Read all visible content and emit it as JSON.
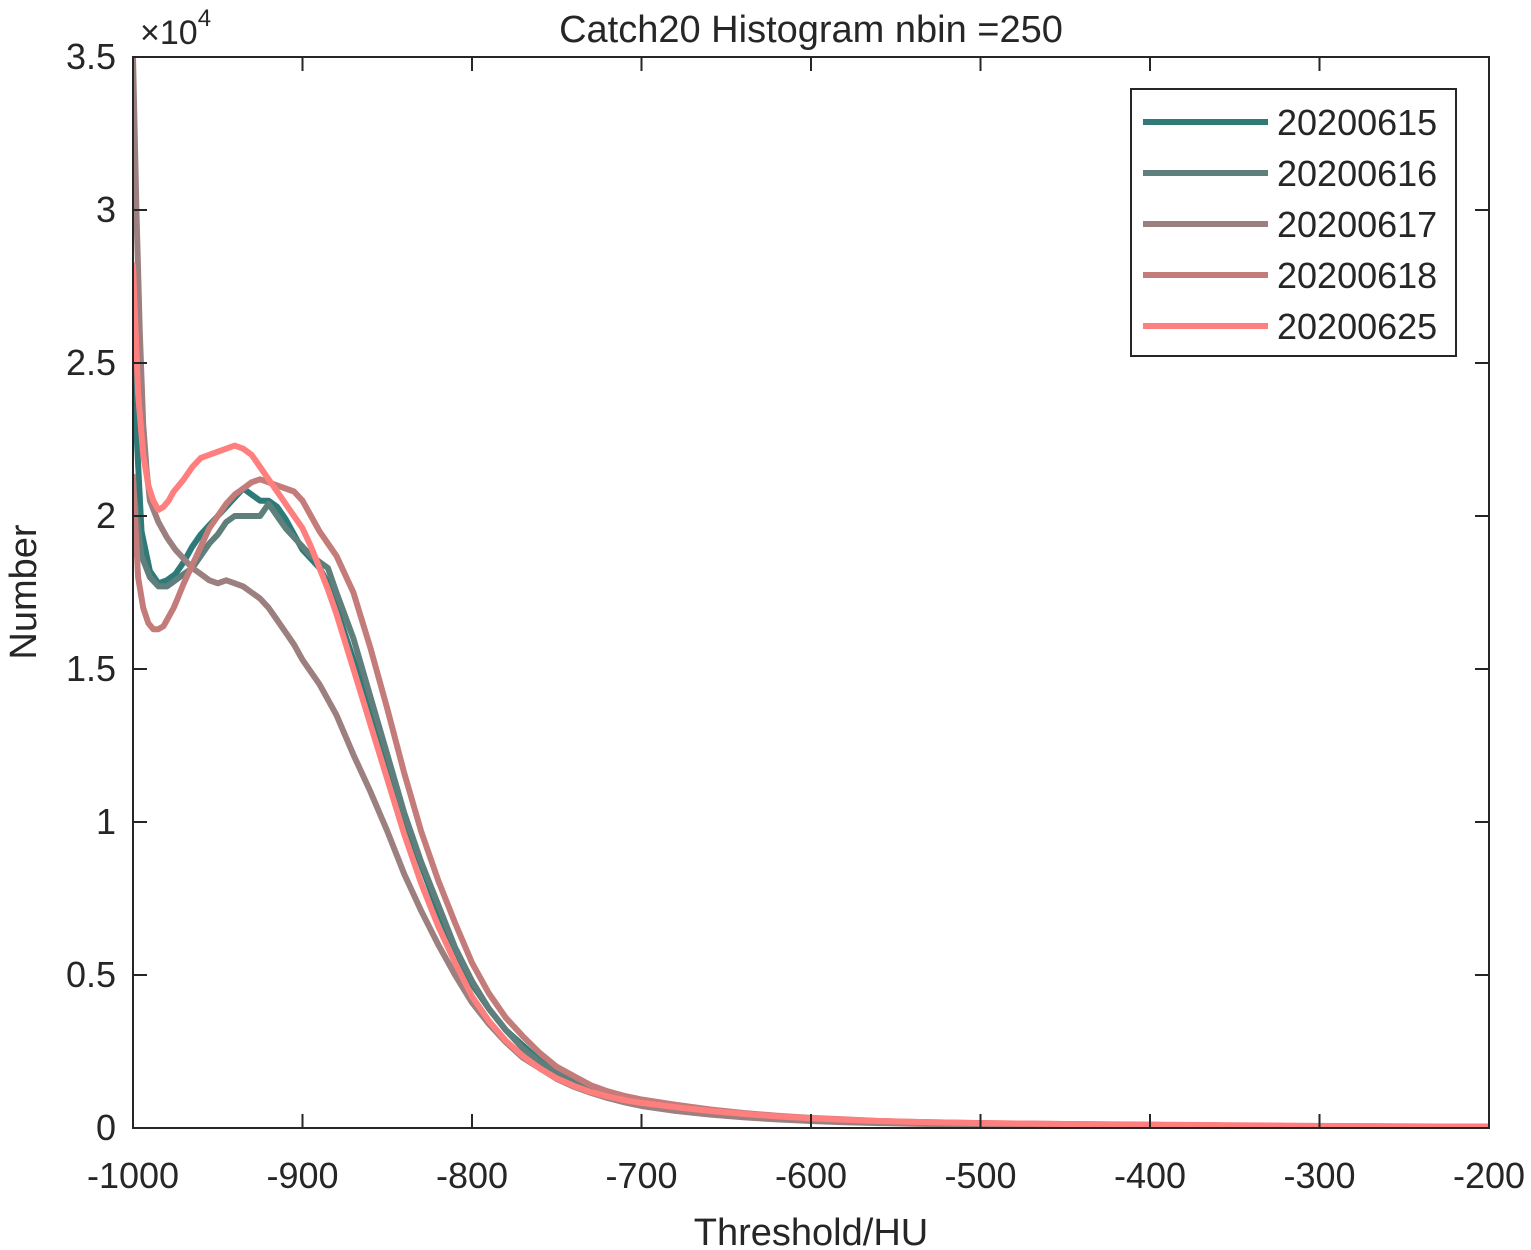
{
  "chart_data": {
    "type": "line",
    "title": "Catch20  Histogram nbin =250",
    "xlabel": "Threshold/HU",
    "ylabel": "Number",
    "y_exponent_label": "×10",
    "y_exponent_power": "4",
    "xlim": [
      -1000,
      -200
    ],
    "ylim": [
      0,
      35000
    ],
    "xticks": [
      -1000,
      -900,
      -800,
      -700,
      -600,
      -500,
      -400,
      -300,
      -200
    ],
    "xtick_labels": [
      "-1000",
      "-900",
      "-800",
      "-700",
      "-600",
      "-500",
      "-400",
      "-300",
      "-200"
    ],
    "yticks": [
      0,
      5000,
      10000,
      15000,
      20000,
      25000,
      30000,
      35000
    ],
    "ytick_labels": [
      "0",
      "0.5",
      "1",
      "1.5",
      "2",
      "2.5",
      "3",
      "3.5"
    ],
    "grid": false,
    "legend_position": "top-right",
    "series": [
      {
        "name": "20200615",
        "color": "#2e7a78",
        "x": [
          -1000,
          -995,
          -990,
          -985,
          -980,
          -975,
          -970,
          -965,
          -960,
          -955,
          -950,
          -945,
          -940,
          -935,
          -930,
          -925,
          -920,
          -915,
          -910,
          -905,
          -900,
          -895,
          -890,
          -885,
          -880,
          -870,
          -860,
          -850,
          -840,
          -830,
          -820,
          -810,
          -800,
          -790,
          -780,
          -770,
          -760,
          -750,
          -740,
          -730,
          -720,
          -710,
          -700,
          -680,
          -660,
          -640,
          -620,
          -600,
          -580,
          -560,
          -540,
          -520,
          -500,
          -450,
          -400,
          -350,
          -300,
          -250,
          -200
        ],
        "y": [
          25000,
          19500,
          18200,
          17800,
          17900,
          18100,
          18500,
          19000,
          19400,
          19700,
          20000,
          20300,
          20600,
          20900,
          20700,
          20500,
          20500,
          20300,
          19900,
          19400,
          18900,
          18600,
          18300,
          17800,
          17000,
          15300,
          13700,
          11800,
          10000,
          8600,
          7100,
          5800,
          4700,
          3900,
          3200,
          2700,
          2200,
          1850,
          1550,
          1300,
          1100,
          950,
          850,
          700,
          560,
          450,
          370,
          300,
          260,
          220,
          190,
          170,
          150,
          120,
          100,
          80,
          60,
          50,
          40
        ]
      },
      {
        "name": "20200616",
        "color": "#5e7f7b",
        "x": [
          -1000,
          -995,
          -990,
          -985,
          -980,
          -975,
          -970,
          -965,
          -960,
          -955,
          -950,
          -945,
          -940,
          -935,
          -930,
          -925,
          -920,
          -915,
          -910,
          -905,
          -900,
          -895,
          -890,
          -885,
          -880,
          -870,
          -860,
          -850,
          -840,
          -830,
          -820,
          -810,
          -800,
          -790,
          -780,
          -770,
          -760,
          -750,
          -740,
          -730,
          -720,
          -710,
          -700,
          -680,
          -660,
          -640,
          -620,
          -600,
          -580,
          -560,
          -540,
          -520,
          -500,
          -450,
          -400,
          -350,
          -300,
          -250,
          -200
        ],
        "y": [
          21000,
          18700,
          18000,
          17700,
          17700,
          17900,
          18100,
          18300,
          18700,
          19100,
          19400,
          19800,
          20000,
          20000,
          20000,
          20000,
          20400,
          20000,
          19600,
          19300,
          19000,
          18700,
          18500,
          18300,
          17500,
          16000,
          14100,
          12200,
          10300,
          8700,
          7300,
          5900,
          4800,
          3900,
          3200,
          2600,
          2150,
          1800,
          1500,
          1270,
          1080,
          930,
          830,
          680,
          550,
          450,
          370,
          300,
          260,
          220,
          190,
          170,
          150,
          120,
          100,
          80,
          60,
          50,
          40
        ]
      },
      {
        "name": "20200617",
        "color": "#9c7f7f",
        "x": [
          -1000,
          -998,
          -996,
          -994,
          -992,
          -990,
          -985,
          -980,
          -975,
          -970,
          -965,
          -960,
          -955,
          -950,
          -945,
          -940,
          -935,
          -930,
          -925,
          -920,
          -915,
          -910,
          -905,
          -900,
          -895,
          -890,
          -880,
          -870,
          -860,
          -850,
          -840,
          -830,
          -820,
          -810,
          -800,
          -790,
          -780,
          -770,
          -760,
          -750,
          -740,
          -730,
          -720,
          -710,
          -700,
          -680,
          -660,
          -640,
          -620,
          -600,
          -580,
          -560,
          -540,
          -520,
          -500,
          -450,
          -400,
          -350,
          -300,
          -250,
          -200
        ],
        "y": [
          35000,
          30000,
          26000,
          23000,
          21500,
          20500,
          19800,
          19300,
          18900,
          18600,
          18300,
          18100,
          17900,
          17800,
          17900,
          17800,
          17700,
          17500,
          17300,
          17000,
          16600,
          16200,
          15800,
          15300,
          14900,
          14500,
          13500,
          12200,
          11000,
          9700,
          8300,
          7100,
          6000,
          5000,
          4100,
          3400,
          2800,
          2300,
          1950,
          1600,
          1350,
          1150,
          980,
          840,
          720,
          560,
          440,
          350,
          280,
          230,
          190,
          160,
          140,
          120,
          100,
          80,
          60,
          50,
          40,
          30,
          25
        ]
      },
      {
        "name": "20200618",
        "color": "#c47c7a",
        "x": [
          -1000,
          -997,
          -994,
          -991,
          -988,
          -985,
          -982,
          -979,
          -976,
          -973,
          -970,
          -965,
          -960,
          -955,
          -950,
          -945,
          -940,
          -935,
          -930,
          -925,
          -920,
          -915,
          -910,
          -905,
          -900,
          -895,
          -890,
          -885,
          -880,
          -870,
          -860,
          -850,
          -840,
          -830,
          -820,
          -810,
          -800,
          -790,
          -780,
          -770,
          -760,
          -750,
          -740,
          -730,
          -720,
          -710,
          -700,
          -680,
          -660,
          -640,
          -620,
          -600,
          -580,
          -560,
          -540,
          -520,
          -500,
          -450,
          -400,
          -350,
          -300,
          -250,
          -200
        ],
        "y": [
          21300,
          18000,
          17000,
          16500,
          16300,
          16300,
          16400,
          16700,
          17000,
          17400,
          17800,
          18400,
          19000,
          19600,
          20000,
          20400,
          20700,
          20900,
          21100,
          21200,
          21100,
          21000,
          20900,
          20800,
          20500,
          20000,
          19500,
          19100,
          18700,
          17500,
          15700,
          13700,
          11600,
          9700,
          8100,
          6700,
          5400,
          4400,
          3600,
          3000,
          2450,
          2000,
          1700,
          1400,
          1200,
          1050,
          930,
          760,
          610,
          490,
          400,
          330,
          280,
          230,
          200,
          180,
          160,
          130,
          100,
          80,
          60,
          50,
          40
        ]
      },
      {
        "name": "20200625",
        "color": "#ff7f7f",
        "x": [
          -1000,
          -997,
          -994,
          -991,
          -988,
          -985,
          -982,
          -979,
          -976,
          -973,
          -970,
          -965,
          -960,
          -955,
          -950,
          -945,
          -940,
          -935,
          -930,
          -925,
          -920,
          -915,
          -910,
          -905,
          -900,
          -895,
          -890,
          -885,
          -880,
          -870,
          -860,
          -850,
          -840,
          -830,
          -820,
          -810,
          -800,
          -790,
          -780,
          -770,
          -760,
          -750,
          -740,
          -730,
          -720,
          -710,
          -700,
          -680,
          -660,
          -640,
          -620,
          -600,
          -580,
          -560,
          -540,
          -520,
          -500,
          -450,
          -400,
          -350,
          -300,
          -250,
          -200
        ],
        "y": [
          28200,
          24000,
          22000,
          21000,
          20500,
          20200,
          20300,
          20500,
          20800,
          21000,
          21200,
          21600,
          21900,
          22000,
          22100,
          22200,
          22300,
          22200,
          22000,
          21600,
          21200,
          20800,
          20400,
          20000,
          19600,
          19000,
          18300,
          17600,
          16800,
          15000,
          13200,
          11400,
          9600,
          8000,
          6600,
          5400,
          4300,
          3500,
          2850,
          2350,
          1950,
          1620,
          1380,
          1180,
          1030,
          910,
          820,
          680,
          560,
          460,
          380,
          320,
          270,
          230,
          200,
          180,
          160,
          130,
          110,
          90,
          70,
          55,
          40
        ]
      }
    ]
  }
}
